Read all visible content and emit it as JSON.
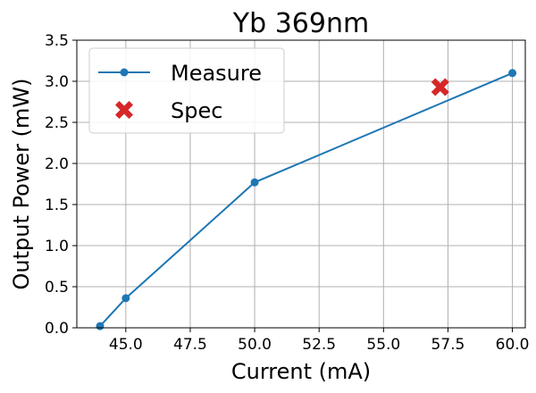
{
  "chart_data": {
    "type": "line",
    "title": "Yb 369nm",
    "xlabel": "Current (mA)",
    "ylabel": "Output Power (mW)",
    "xlim": [
      43.1,
      60.5
    ],
    "ylim": [
      0,
      3.5
    ],
    "xticks": [
      45.0,
      47.5,
      50.0,
      52.5,
      55.0,
      57.5,
      60.0
    ],
    "xtick_labels": [
      "45.0",
      "47.5",
      "50.0",
      "52.5",
      "55.0",
      "57.5",
      "60.0"
    ],
    "yticks": [
      0.0,
      0.5,
      1.0,
      1.5,
      2.0,
      2.5,
      3.0,
      3.5
    ],
    "ytick_labels": [
      "0.0",
      "0.5",
      "1.0",
      "1.5",
      "2.0",
      "2.5",
      "3.0",
      "3.5"
    ],
    "grid": true,
    "legend_position": "top-left",
    "series": [
      {
        "name": "Measure",
        "kind": "line-marker",
        "color": "#1f77b4",
        "x": [
          44.0,
          45.0,
          50.0,
          60.0
        ],
        "y": [
          0.02,
          0.36,
          1.77,
          3.1
        ]
      },
      {
        "name": "Spec",
        "kind": "x-marker",
        "color": "#d62728",
        "x": [
          57.2
        ],
        "y": [
          2.93
        ]
      }
    ]
  }
}
